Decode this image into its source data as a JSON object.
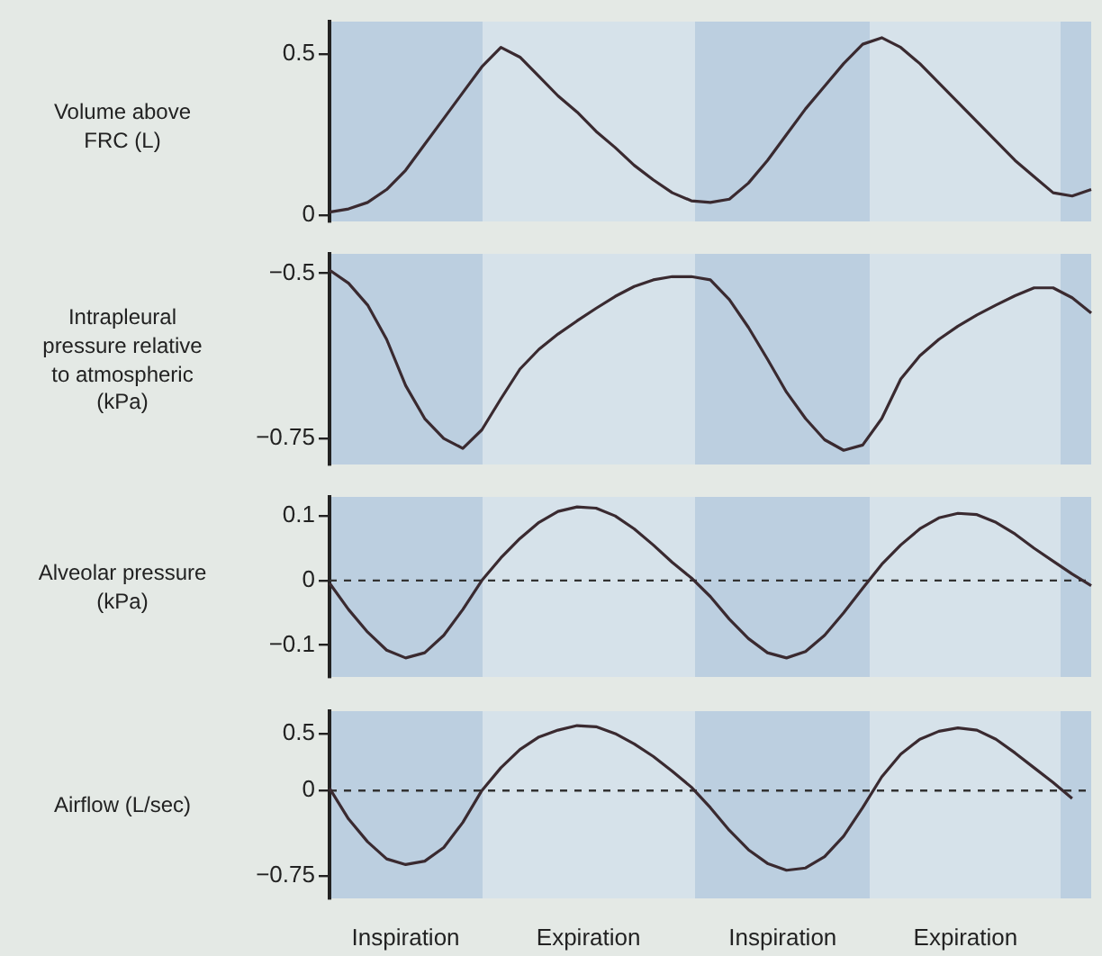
{
  "chart_data": [
    {
      "type": "line",
      "ylabel": "Volume above FRC (L)",
      "ylim": [
        -0.02,
        0.6
      ],
      "yticks": [
        0,
        0.5
      ],
      "tick_labels": "y",
      "marker": "none",
      "categories": [
        null,
        null,
        null,
        null,
        null,
        null,
        null,
        null,
        null,
        null,
        null,
        null,
        null,
        null,
        null,
        null,
        null,
        null,
        null,
        null,
        null,
        null,
        null,
        null,
        null,
        null,
        null,
        null,
        null,
        null,
        null,
        null,
        null,
        null,
        null,
        null,
        null,
        null,
        null,
        null,
        null
      ],
      "series": [
        {
          "color": "#3a2a30",
          "values": [
            0.01,
            0.02,
            0.04,
            0.08,
            0.14,
            0.22,
            0.3,
            0.38,
            0.46,
            0.52,
            0.49,
            0.43,
            0.37,
            0.32,
            0.26,
            0.21,
            0.155,
            0.11,
            0.07,
            0.045,
            0.04,
            0.05,
            0.1,
            0.17,
            0.25,
            0.33,
            0.4,
            0.47,
            0.53,
            0.55,
            0.52,
            0.47,
            0.41,
            0.35,
            0.29,
            0.23,
            0.17,
            0.12,
            0.07,
            0.06,
            0.08
          ]
        }
      ]
    },
    {
      "type": "line",
      "ylabel": "Intrapleural pressure relative to atmospheric (kPa)",
      "ylim": [
        -0.79,
        -0.47
      ],
      "yticks": [
        {
          "value": -0.75,
          "label": "−0.75"
        },
        {
          "value": -0.5,
          "label": "−0.5"
        }
      ],
      "tick_labels": "y",
      "marker": "none",
      "categories": [
        null,
        null,
        null,
        null,
        null,
        null,
        null,
        null,
        null,
        null,
        null,
        null,
        null,
        null,
        null,
        null,
        null,
        null,
        null,
        null,
        null,
        null,
        null,
        null,
        null,
        null,
        null,
        null,
        null,
        null,
        null,
        null,
        null,
        null,
        null,
        null,
        null,
        null,
        null,
        null,
        null
      ],
      "series": [
        {
          "color": "#3a2a30",
          "values": [
            -0.495,
            -0.515,
            -0.548,
            -0.6,
            -0.67,
            -0.72,
            -0.75,
            -0.765,
            -0.737,
            -0.69,
            -0.645,
            -0.615,
            -0.592,
            -0.572,
            -0.553,
            -0.535,
            -0.52,
            -0.51,
            -0.505,
            -0.505,
            -0.51,
            -0.54,
            -0.582,
            -0.63,
            -0.68,
            -0.72,
            -0.752,
            -0.768,
            -0.76,
            -0.72,
            -0.66,
            -0.625,
            -0.6,
            -0.58,
            -0.563,
            -0.548,
            -0.534,
            -0.522,
            -0.522,
            -0.537,
            -0.56
          ]
        }
      ]
    },
    {
      "type": "line",
      "ylabel": "Alveolar pressure (kPa)",
      "ylim": [
        -0.15,
        0.13
      ],
      "yticks": [
        {
          "value": -0.1,
          "label": "−0.1"
        },
        0,
        0.1
      ],
      "tick_labels": "y",
      "marker": "none",
      "categories": [
        null,
        null,
        null,
        null,
        null,
        null,
        null,
        null,
        null,
        null,
        null,
        null,
        null,
        null,
        null,
        null,
        null,
        null,
        null,
        null,
        null,
        null,
        null,
        null,
        null,
        null,
        null,
        null,
        null,
        null,
        null,
        null,
        null,
        null,
        null,
        null,
        null,
        null,
        null,
        null,
        null
      ],
      "series": [
        {
          "color": "#3a2a30",
          "values": [
            -0.004,
            -0.045,
            -0.08,
            -0.108,
            -0.12,
            -0.112,
            -0.085,
            -0.045,
            0,
            0.035,
            0.065,
            0.09,
            0.107,
            0.114,
            0.112,
            0.1,
            0.08,
            0.055,
            0.028,
            0.004,
            -0.025,
            -0.06,
            -0.09,
            -0.112,
            -0.12,
            -0.11,
            -0.085,
            -0.05,
            -0.012,
            0.025,
            0.055,
            0.08,
            0.097,
            0.104,
            0.102,
            0.09,
            0.072,
            0.05,
            0.03,
            0.01,
            -0.008
          ]
        }
      ],
      "ref_lines": [
        {
          "axis": "y",
          "value": 0,
          "color": "#333333",
          "line_style": "dashed"
        }
      ]
    },
    {
      "type": "line",
      "ylabel": "Airflow (L/sec)",
      "ylim": [
        -0.95,
        0.7
      ],
      "yticks": [
        {
          "value": -0.75,
          "label": "−0.75"
        },
        0,
        0.5
      ],
      "tick_labels": "y",
      "marker": "none",
      "categories": [
        null,
        null,
        null,
        null,
        null,
        null,
        null,
        null,
        null,
        null,
        null,
        null,
        null,
        null,
        null,
        null,
        null,
        null,
        null,
        null,
        null,
        null,
        null,
        null,
        null,
        null,
        null,
        null,
        null,
        null,
        null,
        null,
        null,
        null,
        null,
        null,
        null,
        null,
        null,
        null,
        null
      ],
      "series": [
        {
          "color": "#3a2a30",
          "values": [
            0.02,
            -0.25,
            -0.45,
            -0.6,
            -0.65,
            -0.62,
            -0.5,
            -0.28,
            0,
            0.2,
            0.36,
            0.47,
            0.53,
            0.57,
            0.56,
            0.5,
            0.41,
            0.3,
            0.17,
            0.03,
            -0.15,
            -0.35,
            -0.52,
            -0.64,
            -0.7,
            -0.68,
            -0.58,
            -0.4,
            -0.15,
            0.12,
            0.32,
            0.45,
            0.52,
            0.55,
            0.53,
            0.45,
            0.33,
            0.2,
            0.07,
            -0.07,
            null
          ]
        }
      ],
      "ref_lines": [
        {
          "axis": "y",
          "value": 0,
          "color": "#333333",
          "line_style": "dashed"
        }
      ],
      "annotations": [
        "Inspiration",
        "Expiration",
        "Inspiration",
        "Expiration"
      ]
    }
  ]
}
